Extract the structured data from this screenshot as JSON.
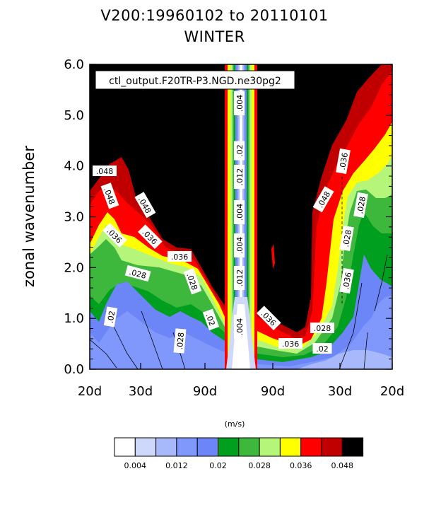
{
  "title_line1": "V200:19960102 to 20110101",
  "title_line2": "WINTER",
  "chart_data": {
    "type": "heatmap",
    "subtitle": "ctl_output.F20TR-P3.NGD.ne30pg2",
    "ylabel": "zonal wavenumber",
    "xlabel": "",
    "ylim": [
      0,
      6
    ],
    "y_ticks": [
      "0.0",
      "1.0",
      "2.0",
      "3.0",
      "4.0",
      "5.0",
      "6.0"
    ],
    "x_ticks": [
      "20d",
      "30d",
      "90d",
      "90d",
      "30d",
      "20d"
    ],
    "colorbar_units": "(m/s)",
    "colorbar_labels": [
      "0.004",
      "0.012",
      "0.02",
      "0.028",
      "0.036",
      "0.048"
    ],
    "levels": [
      0,
      0.004,
      0.008,
      0.012,
      0.016,
      0.02,
      0.024,
      0.028,
      0.032,
      0.036,
      0.04,
      0.044,
      0.048
    ],
    "colors": [
      "#ffffff",
      "#cdd8fb",
      "#a8b9fb",
      "#8098fb",
      "#6d86f7",
      "#009f1f",
      "#3db83d",
      "#b5f57a",
      "#ffff00",
      "#ff0000",
      "#c00000",
      "#000000"
    ],
    "contour_labels": [
      ".048",
      ".048",
      ".048",
      ".036",
      ".036",
      ".036",
      ".028",
      ".028",
      ".02",
      ".02",
      ".028",
      ".004",
      ".012",
      ".004",
      ".004",
      ".012",
      ".02",
      ".004",
      ".036",
      ".048",
      ".036",
      ".028",
      ".028",
      ".036",
      ".036",
      ".028",
      ".02"
    ]
  }
}
